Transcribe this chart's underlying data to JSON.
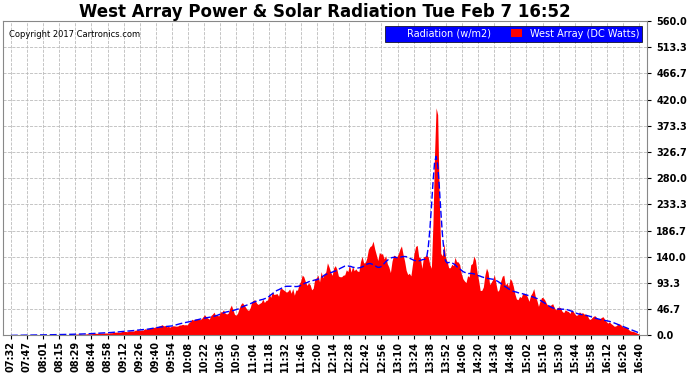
{
  "title": "West Array Power & Solar Radiation Tue Feb 7 16:52",
  "copyright": "Copyright 2017 Cartronics.com",
  "ylabel_right_ticks": [
    0.0,
    46.7,
    93.3,
    140.0,
    186.7,
    233.3,
    280.0,
    326.7,
    373.3,
    420.0,
    466.7,
    513.3,
    560.0
  ],
  "ymax": 560.0,
  "ymin": 0.0,
  "legend_labels": [
    "Radiation (w/m2)",
    "West Array (DC Watts)"
  ],
  "bg_color": "#ffffff",
  "plot_bg": "#ffffff",
  "grid_color": "#bbbbbb",
  "title_fontsize": 12,
  "tick_fontsize": 7,
  "x_tick_labels": [
    "07:32",
    "07:47",
    "08:01",
    "08:15",
    "08:29",
    "08:44",
    "08:58",
    "09:12",
    "09:26",
    "09:40",
    "09:54",
    "10:08",
    "10:22",
    "10:36",
    "10:50",
    "11:04",
    "11:18",
    "11:32",
    "11:46",
    "12:00",
    "12:14",
    "12:28",
    "12:42",
    "12:56",
    "13:10",
    "13:24",
    "13:38",
    "13:52",
    "14:06",
    "14:20",
    "14:34",
    "14:48",
    "15:02",
    "15:16",
    "15:30",
    "15:44",
    "15:58",
    "16:12",
    "16:26",
    "16:40"
  ],
  "n_ticks": 40
}
